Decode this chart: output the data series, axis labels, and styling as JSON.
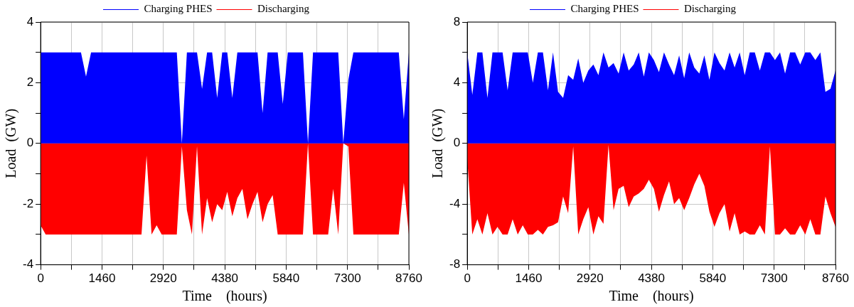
{
  "chart_data": [
    {
      "type": "area",
      "xlabel": "Time    (hours)",
      "ylabel": "Load  (GW)",
      "legend": "top",
      "grid": true,
      "x": [
        0,
        120,
        240,
        360,
        480,
        600,
        720,
        840,
        960,
        1080,
        1200,
        1320,
        1440,
        1560,
        1680,
        1800,
        1920,
        2040,
        2160,
        2280,
        2400,
        2520,
        2640,
        2760,
        2880,
        3000,
        3120,
        3240,
        3360,
        3480,
        3600,
        3720,
        3840,
        3960,
        4080,
        4200,
        4320,
        4440,
        4560,
        4680,
        4800,
        4920,
        5040,
        5160,
        5280,
        5400,
        5520,
        5640,
        5760,
        5880,
        6000,
        6120,
        6240,
        6360,
        6480,
        6600,
        6720,
        6840,
        6960,
        7080,
        7200,
        7320,
        7440,
        7560,
        7680,
        7800,
        7920,
        8040,
        8160,
        8280,
        8400,
        8520,
        8640,
        8760
      ],
      "xlim": [
        0,
        8760
      ],
      "xticks": [
        0,
        {
          "value": 730,
          "label": null
        },
        1460,
        {
          "value": 2190,
          "label": null
        },
        2920,
        {
          "value": 3650,
          "label": null
        },
        4380,
        {
          "value": 5110,
          "label": null
        },
        5840,
        {
          "value": 6570,
          "label": null
        },
        7300,
        {
          "value": 8030,
          "label": null
        },
        8760
      ],
      "ylim": [
        -4,
        4
      ],
      "yticks": [
        -4,
        {
          "value": -3,
          "label": null
        },
        -2,
        {
          "value": -1,
          "label": null
        },
        0,
        {
          "value": 1,
          "label": null
        },
        2,
        {
          "value": 3,
          "label": null
        },
        4
      ],
      "series": [
        {
          "name": "Charging PHES",
          "color": "#0000ff",
          "values": [
            3,
            3,
            3,
            3,
            3,
            3,
            3,
            3,
            3,
            2.2,
            3,
            3,
            3,
            3,
            3,
            3,
            3,
            3,
            3,
            3,
            3,
            3,
            3,
            3,
            3,
            3,
            3,
            3,
            0,
            3,
            3,
            3,
            1.8,
            3,
            3,
            1.5,
            3,
            3,
            1.5,
            3,
            3,
            3,
            3,
            3,
            1.0,
            3,
            3,
            3,
            1.3,
            3,
            3,
            3,
            3,
            0,
            3,
            3,
            3,
            3,
            3,
            3,
            0,
            2.1,
            3,
            3,
            3,
            3,
            3,
            3,
            3,
            3,
            3,
            3,
            0.8,
            3
          ]
        },
        {
          "name": "Discharging",
          "color": "#ff0000",
          "values": [
            -2.7,
            -3,
            -3,
            -3,
            -3,
            -3,
            -3,
            -3,
            -3,
            -3,
            -3,
            -3,
            -3,
            -3,
            -3,
            -3,
            -3,
            -3,
            -3,
            -3,
            -3,
            -0.4,
            -3,
            -2.7,
            -3,
            -3,
            -3,
            -3,
            -0.1,
            -2.2,
            -3,
            -0.1,
            -3,
            -1.8,
            -2.6,
            -2.0,
            -2.2,
            -1.6,
            -2.4,
            -1.8,
            -1.5,
            -2.5,
            -2.0,
            -1.6,
            -2.6,
            -2.0,
            -1.7,
            -3,
            -3,
            -3,
            -3,
            -3,
            -3,
            0,
            -3,
            -3,
            -3,
            -3,
            -1.5,
            -3,
            0,
            -0.1,
            -3,
            -3,
            -3,
            -3,
            -3,
            -3,
            -3,
            -3,
            -3,
            -3,
            -1.3,
            -3
          ]
        }
      ]
    },
    {
      "type": "area",
      "xlabel": "Time    (hours)",
      "ylabel": "Load  (GW)",
      "legend": "top",
      "grid": true,
      "x": [
        0,
        120,
        240,
        360,
        480,
        600,
        720,
        840,
        960,
        1080,
        1200,
        1320,
        1440,
        1560,
        1680,
        1800,
        1920,
        2040,
        2160,
        2280,
        2400,
        2520,
        2640,
        2760,
        2880,
        3000,
        3120,
        3240,
        3360,
        3480,
        3600,
        3720,
        3840,
        3960,
        4080,
        4200,
        4320,
        4440,
        4560,
        4680,
        4800,
        4920,
        5040,
        5160,
        5280,
        5400,
        5520,
        5640,
        5760,
        5880,
        6000,
        6120,
        6240,
        6360,
        6480,
        6600,
        6720,
        6840,
        6960,
        7080,
        7200,
        7320,
        7440,
        7560,
        7680,
        7800,
        7920,
        8040,
        8160,
        8280,
        8400,
        8520,
        8640,
        8760
      ],
      "xlim": [
        0,
        8760
      ],
      "xticks": [
        0,
        {
          "value": 730,
          "label": null
        },
        1460,
        {
          "value": 2190,
          "label": null
        },
        2920,
        {
          "value": 3650,
          "label": null
        },
        4380,
        {
          "value": 5110,
          "label": null
        },
        5840,
        {
          "value": 6570,
          "label": null
        },
        7300,
        {
          "value": 8030,
          "label": null
        },
        8760
      ],
      "ylim": [
        -8,
        8
      ],
      "yticks": [
        -8,
        {
          "value": -6,
          "label": null
        },
        -4,
        {
          "value": -2,
          "label": null
        },
        0,
        {
          "value": 2,
          "label": null
        },
        4,
        {
          "value": 6,
          "label": null
        },
        8
      ],
      "series": [
        {
          "name": "Charging PHES",
          "color": "#0000ff",
          "values": [
            6,
            3.2,
            6,
            6,
            3,
            6,
            6,
            6,
            3.5,
            6,
            6,
            6,
            6,
            4,
            6,
            6,
            3.5,
            6,
            3.4,
            3,
            4.5,
            4.2,
            5.6,
            4,
            4.8,
            5.2,
            4.5,
            6,
            5,
            5.3,
            4.6,
            6,
            4.8,
            5.2,
            6,
            4.4,
            6,
            5.5,
            4.7,
            6,
            5.2,
            4.5,
            5.8,
            4.3,
            6,
            5,
            4.6,
            5.8,
            4.2,
            6,
            5.3,
            4.8,
            6,
            5,
            6,
            4.5,
            6,
            6,
            4.8,
            6,
            6,
            5.5,
            6,
            4.6,
            6,
            6,
            5.2,
            6,
            6,
            5.5,
            6,
            3.4,
            3.6,
            4.8
          ]
        },
        {
          "name": "Discharging",
          "color": "#ff0000",
          "values": [
            -1,
            -6,
            -5,
            -6,
            -4.6,
            -6,
            -5.5,
            -6,
            -6,
            -5,
            -6,
            -5.4,
            -6,
            -6,
            -5.7,
            -6,
            -5.5,
            -5.4,
            -5.2,
            -3.5,
            -4.6,
            -0.2,
            -6,
            -5,
            -4.2,
            -6,
            -4.8,
            -5.3,
            -0.1,
            -4.4,
            -3,
            -2.8,
            -4.2,
            -3.5,
            -3.3,
            -3,
            -2.4,
            -3,
            -4.5,
            -3.4,
            -2.5,
            -4,
            -3.6,
            -4.4,
            -3.6,
            -2.7,
            -2,
            -2.8,
            -4.5,
            -5.5,
            -4.6,
            -4,
            -5.8,
            -4.6,
            -6,
            -5.8,
            -6,
            -6,
            -5.4,
            -6,
            -0.2,
            -6,
            -6,
            -5.6,
            -6,
            -6,
            -5.4,
            -6,
            -5,
            -6,
            -6,
            -3.5,
            -4.6,
            -5.5
          ]
        }
      ]
    }
  ]
}
